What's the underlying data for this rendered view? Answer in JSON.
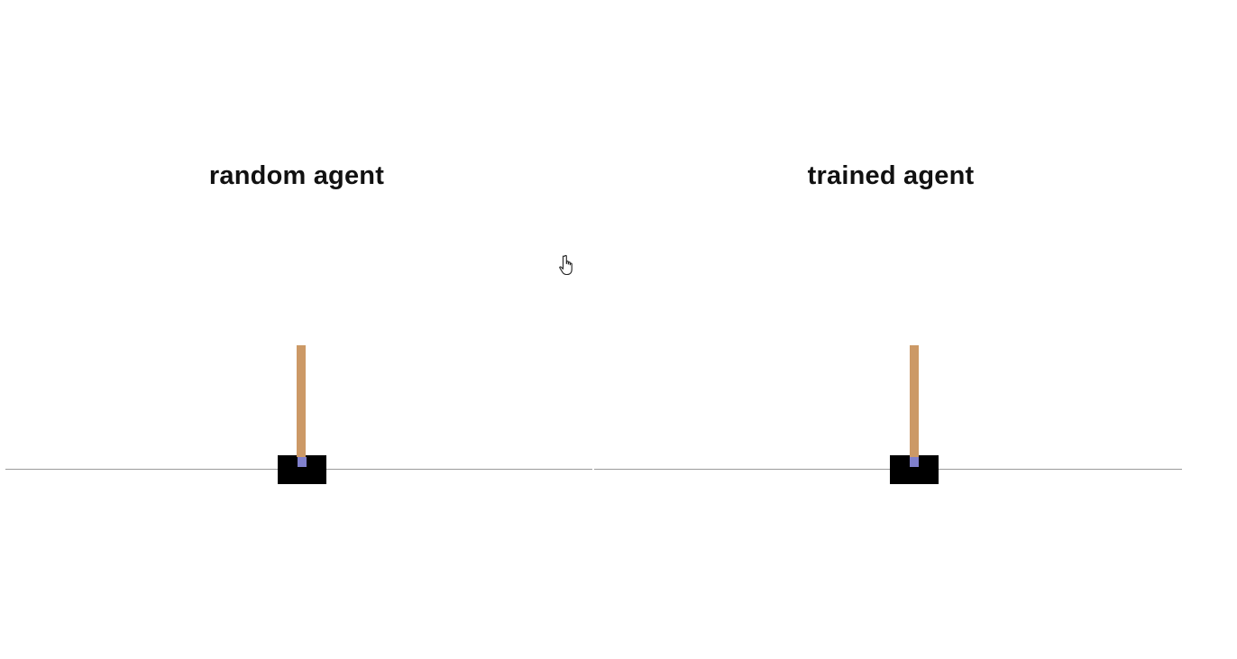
{
  "panels": [
    {
      "title": "random agent"
    },
    {
      "title": "trained agent"
    }
  ],
  "colors": {
    "background": "#ffffff",
    "track": "#9a9a9a",
    "cart": "#000000",
    "pole": "#cc9966",
    "axle": "#8080cc",
    "title_text": "#111111"
  },
  "cursor": {
    "icon": "hand-pointer-icon"
  }
}
